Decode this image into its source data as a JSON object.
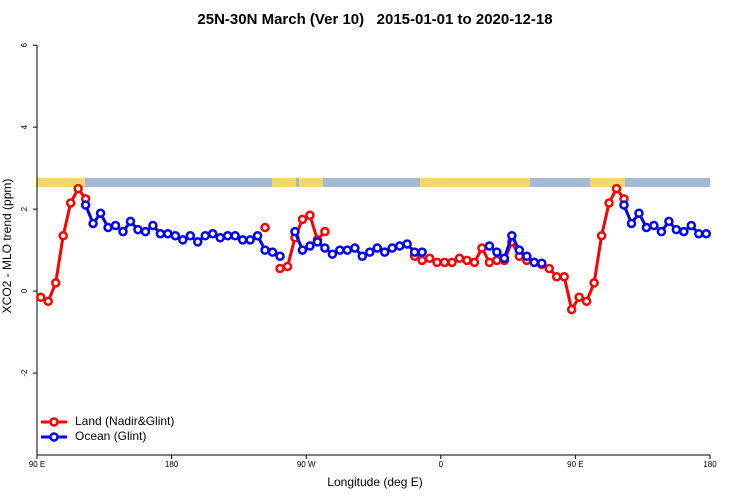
{
  "chart_data": {
    "type": "line",
    "title": "25N-30N March (Ver 10)   2015-01-01 to 2020-12-18",
    "x_label": "Longitude (deg E)",
    "y_label": "XCO2 - MLO trend (ppm)",
    "xlim": [
      90,
      540
    ],
    "xticks": [
      {
        "value": 90,
        "label": "90 E"
      },
      180,
      {
        "value": 270,
        "label": "90 W"
      },
      {
        "value": 360,
        "label": "0"
      },
      {
        "value": 450,
        "label": "90 E"
      },
      {
        "value": 540,
        "label": "180"
      }
    ],
    "ylim": [
      -4,
      6.2
    ],
    "yticks": [
      -2,
      0,
      2,
      4,
      6
    ],
    "legend": "bottom-left",
    "x": [
      92.5,
      97.5,
      102.5,
      107.5,
      112.5,
      117.5,
      122.5,
      127.5,
      132.5,
      137.5,
      142.5,
      147.5,
      152.5,
      157.5,
      162.5,
      167.5,
      172.5,
      177.5,
      182.5,
      187.5,
      192.5,
      197.5,
      202.5,
      207.5,
      212.5,
      217.5,
      222.5,
      227.5,
      232.5,
      237.5,
      242.5,
      247.5,
      252.5,
      257.5,
      262.5,
      267.5,
      272.5,
      277.5,
      282.5,
      287.5,
      292.5,
      297.5,
      302.5,
      307.5,
      312.5,
      317.5,
      322.5,
      327.5,
      332.5,
      337.5,
      342.5,
      347.5,
      352.5,
      357.5,
      362.5,
      367.5,
      372.5,
      377.5,
      382.5,
      387.5,
      392.5,
      397.5,
      402.5,
      407.5,
      412.5,
      417.5,
      422.5,
      427.5,
      432.5,
      437.5,
      442.5,
      447.5,
      452.5,
      457.5,
      462.5,
      467.5,
      472.5,
      477.5,
      482.5,
      487.5,
      492.5,
      497.5,
      502.5,
      507.5,
      512.5,
      517.5,
      522.5,
      527.5,
      532.5,
      537.5
    ],
    "series": [
      {
        "name": "Land (Nadir&Glint)",
        "color": "#ff0000",
        "values": [
          -0.15,
          -0.25,
          0.2,
          1.35,
          2.15,
          2.5,
          2.25,
          null,
          null,
          null,
          null,
          null,
          null,
          null,
          null,
          null,
          null,
          null,
          null,
          null,
          null,
          null,
          null,
          null,
          null,
          null,
          null,
          null,
          null,
          null,
          1.55,
          null,
          0.55,
          0.6,
          1.3,
          1.75,
          1.85,
          1.25,
          1.45,
          null,
          null,
          null,
          null,
          null,
          null,
          null,
          null,
          null,
          null,
          null,
          0.85,
          0.75,
          0.8,
          0.7,
          0.7,
          0.7,
          0.8,
          0.75,
          0.7,
          1.05,
          0.7,
          0.75,
          0.75,
          1.2,
          0.85,
          0.75,
          0.7,
          0.65,
          0.55,
          0.35,
          0.35,
          -0.45,
          -0.15,
          -0.25,
          0.2,
          1.35,
          2.15,
          2.5,
          2.25,
          null,
          null,
          null,
          null,
          null,
          null,
          null,
          null,
          null,
          null,
          null
        ]
      },
      {
        "name": "Ocean (Glint)",
        "color": "#0000ff",
        "values": [
          null,
          null,
          null,
          null,
          null,
          null,
          2.1,
          1.65,
          1.9,
          1.55,
          1.6,
          1.45,
          1.7,
          1.5,
          1.45,
          1.6,
          1.4,
          1.4,
          1.35,
          1.25,
          1.35,
          1.2,
          1.35,
          1.4,
          1.3,
          1.35,
          1.35,
          1.25,
          1.25,
          1.35,
          1.0,
          0.95,
          0.85,
          null,
          1.45,
          1.0,
          1.1,
          1.2,
          1.05,
          0.9,
          1.0,
          1.0,
          1.05,
          0.85,
          0.95,
          1.05,
          0.95,
          1.05,
          1.1,
          1.15,
          0.95,
          0.95,
          null,
          null,
          null,
          null,
          null,
          null,
          null,
          null,
          1.1,
          0.95,
          0.8,
          1.35,
          1.0,
          0.85,
          0.7,
          0.68,
          null,
          null,
          null,
          null,
          null,
          null,
          null,
          null,
          null,
          null,
          2.1,
          1.65,
          1.9,
          1.55,
          1.6,
          1.45,
          1.7,
          1.5,
          1.45,
          1.6,
          1.4,
          1.4
        ]
      }
    ]
  }
}
